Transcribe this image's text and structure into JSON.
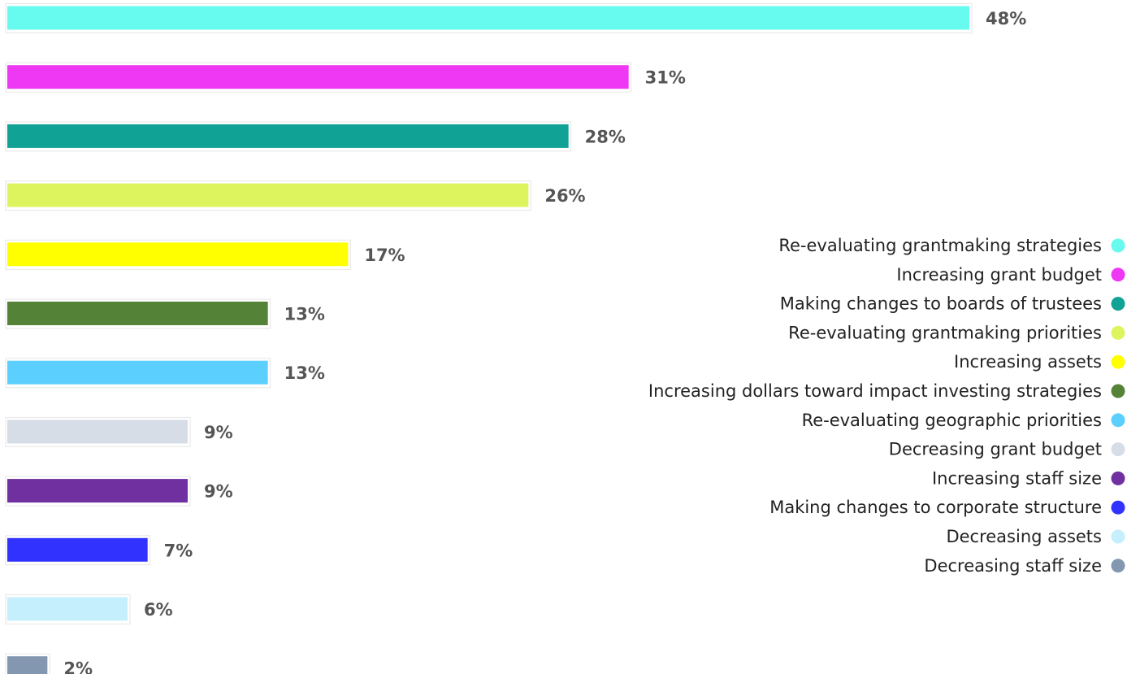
{
  "chart_data": {
    "type": "bar",
    "orientation": "horizontal",
    "title": "",
    "xlabel": "",
    "ylabel": "",
    "xlim": [
      0,
      48
    ],
    "grid": false,
    "legend_position": "right",
    "value_suffix": "%",
    "categories": [
      "Re-evaluating grantmaking strategies",
      "Increasing grant budget",
      "Making changes to boards of trustees",
      "Re-evaluating grantmaking priorities",
      "Increasing assets",
      "Increasing dollars toward impact investing strategies",
      "Re-evaluating geographic priorities",
      "Decreasing grant budget",
      "Increasing staff size",
      "Making changes to corporate structure",
      "Decreasing assets",
      "Decreasing staff size"
    ],
    "values": [
      48,
      31,
      28,
      26,
      17,
      13,
      13,
      9,
      9,
      7,
      6,
      2
    ],
    "value_labels": [
      "48%",
      "31%",
      "28%",
      "26%",
      "17%",
      "13%",
      "13%",
      "9%",
      "9%",
      "7%",
      "6%",
      "2%"
    ],
    "colors": [
      "#66fbee",
      "#ee38f3",
      "#10a294",
      "#def45f",
      "#ffff00",
      "#548236",
      "#5bd0fe",
      "#d6dde6",
      "#7030a0",
      "#3232ff",
      "#c6effe",
      "#8497b0"
    ]
  }
}
